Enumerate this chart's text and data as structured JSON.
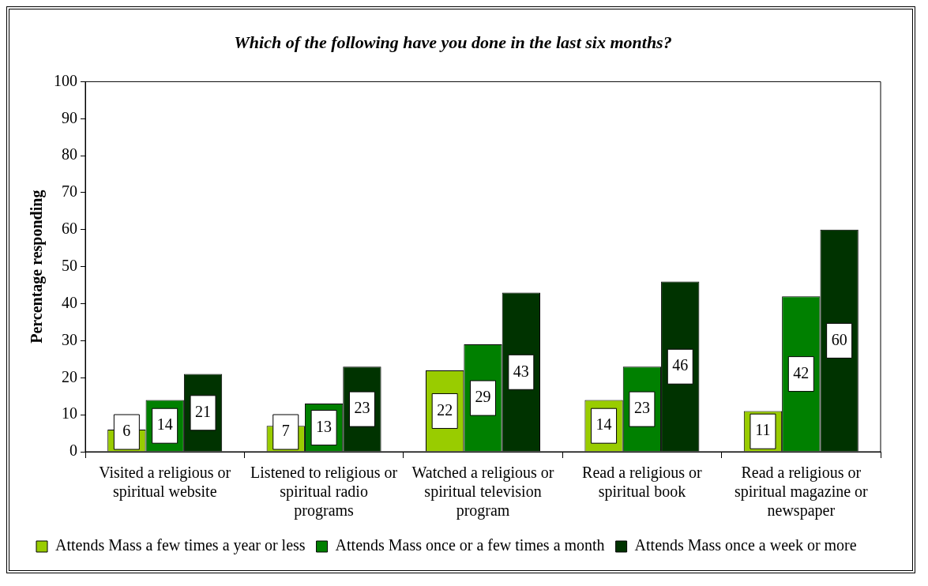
{
  "chart_data": {
    "type": "bar",
    "title": "Which of the following have you done in the last six months?",
    "ylabel": "Percentage responding",
    "categories": [
      "Visited a religious or spiritual website",
      "Listened to religious or spiritual radio programs",
      "Watched a religious or spiritual television program",
      "Read a religious or spiritual book",
      "Read a religious or spiritual magazine or newspaper"
    ],
    "series": [
      {
        "name": "Attends Mass a few times a year or less",
        "color": "#99cc00",
        "values": [
          6,
          7,
          22,
          14,
          11
        ]
      },
      {
        "name": "Attends Mass once or a few times a month",
        "color": "#008000",
        "values": [
          14,
          13,
          29,
          23,
          42
        ]
      },
      {
        "name": "Attends Mass once a week or more",
        "color": "#003300",
        "values": [
          21,
          23,
          43,
          46,
          60
        ]
      }
    ],
    "ylim": [
      0,
      100
    ],
    "yticks": [
      0,
      10,
      20,
      30,
      40,
      50,
      60,
      70,
      80,
      90,
      100
    ],
    "data_labels": true,
    "legend": "bottom"
  }
}
